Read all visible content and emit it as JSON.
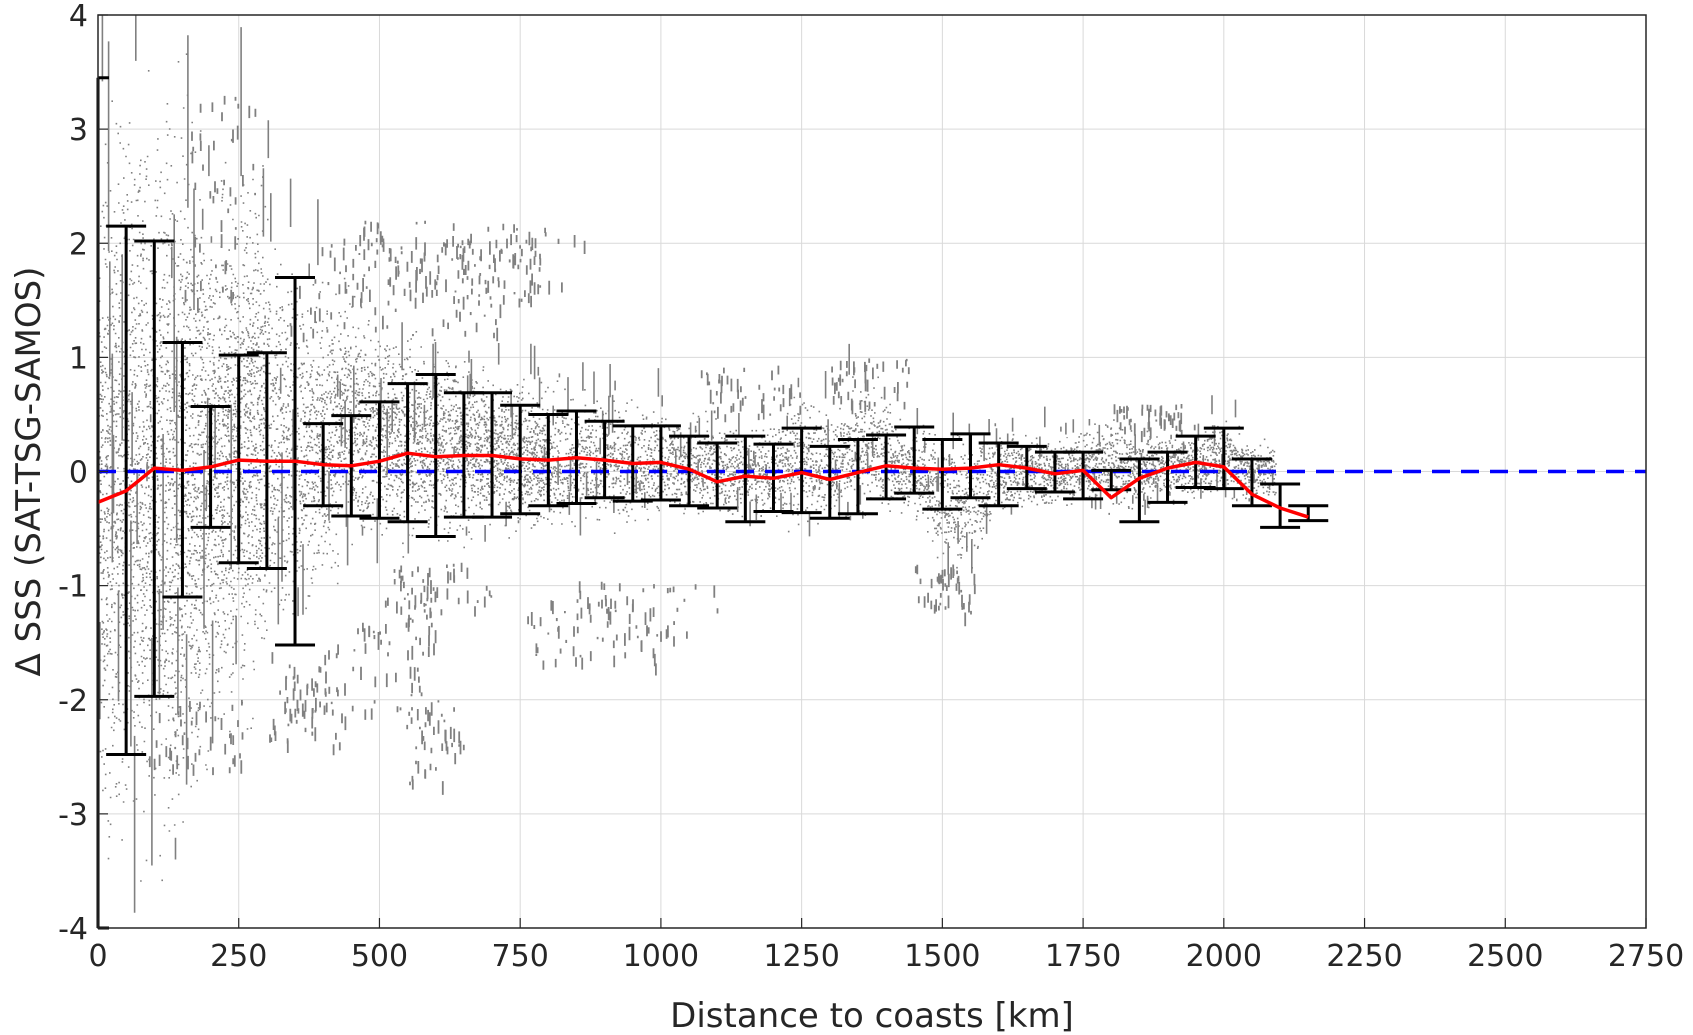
{
  "chart_data": {
    "type": "scatter",
    "title": "",
    "xlabel": "Distance to coasts [km]",
    "ylabel": "Δ SSS (SAT-TSG-SAMOS)",
    "xlim": [
      0,
      2750
    ],
    "ylim": [
      -4,
      4
    ],
    "x_ticks": [
      "0",
      "250",
      "500",
      "750",
      "1000",
      "1250",
      "1500",
      "1750",
      "2000",
      "2250",
      "2500",
      "2750"
    ],
    "y_ticks": [
      "-4",
      "-3",
      "-2",
      "-1",
      "0",
      "1",
      "2",
      "3",
      "4"
    ],
    "grid": true,
    "colors": {
      "scatter": "#808080",
      "errorbar": "#000000",
      "mean_line": "#ff0000",
      "zero_line": "#0000ff"
    },
    "zero_line": {
      "y": 0,
      "style": "dashed"
    },
    "scatter_envelope": {
      "x": [
        0,
        50,
        100,
        150,
        200,
        250,
        300,
        350,
        400,
        450,
        500,
        550,
        600,
        650,
        700,
        750,
        800,
        850,
        900,
        950,
        1000,
        1050,
        1100,
        1150,
        1200,
        1250,
        1300,
        1350,
        1400,
        1450,
        1500,
        1550,
        1600,
        1650,
        1700,
        1750,
        1800,
        1850,
        1900,
        1950,
        2000,
        2050
      ],
      "upper": [
        3.5,
        4.0,
        4.0,
        4.0,
        3.0,
        3.2,
        3.0,
        2.2,
        2.0,
        1.8,
        1.6,
        1.4,
        1.3,
        1.1,
        1.0,
        1.0,
        0.9,
        0.8,
        0.8,
        0.7,
        0.7,
        0.6,
        0.6,
        0.5,
        0.5,
        0.9,
        0.6,
        1.0,
        0.8,
        0.5,
        0.5,
        0.5,
        0.4,
        0.4,
        0.4,
        0.4,
        0.6,
        0.4,
        0.4,
        0.4,
        0.6,
        0.3
      ],
      "lower": [
        -4.0,
        -4.0,
        -4.0,
        -4.0,
        -3.0,
        -2.5,
        -2.2,
        -1.8,
        -1.2,
        -1.0,
        -0.9,
        -0.8,
        -0.8,
        -0.7,
        -0.6,
        -0.7,
        -0.6,
        -0.6,
        -0.6,
        -0.6,
        -0.5,
        -0.5,
        -0.5,
        -0.5,
        -0.5,
        -0.6,
        -0.5,
        -0.5,
        -0.5,
        -0.5,
        -0.9,
        -1.1,
        -0.4,
        -0.4,
        -0.4,
        -0.3,
        -0.4,
        -0.4,
        -0.3,
        -0.3,
        -0.3,
        -0.3
      ]
    },
    "scatter_outliers": [
      {
        "x": [
          380,
          870
        ],
        "y": [
          1.65,
          2.2
        ]
      },
      {
        "x": [
          420,
          780
        ],
        "y": [
          1.45,
          1.95
        ]
      },
      {
        "x": [
          330,
          720
        ],
        "y": [
          1.2,
          1.7
        ]
      },
      {
        "x": [
          440,
          820
        ],
        "y": [
          1.9,
          2.2
        ]
      },
      {
        "x": [
          490,
          790
        ],
        "y": [
          1.55,
          2.05
        ]
      },
      {
        "x": [
          330,
          580
        ],
        "y": [
          -1.7,
          -2.1
        ]
      },
      {
        "x": [
          450,
          600
        ],
        "y": [
          -1.1,
          -1.6
        ]
      },
      {
        "x": [
          540,
          650
        ],
        "y": [
          -2.0,
          -2.75
        ]
      },
      {
        "x": [
          300,
          440
        ],
        "y": [
          -1.5,
          -2.4
        ]
      },
      {
        "x": [
          520,
          700
        ],
        "y": [
          -0.8,
          -1.25
        ]
      },
      {
        "x": [
          760,
          1000
        ],
        "y": [
          -1.1,
          -1.7
        ]
      },
      {
        "x": [
          850,
          1100
        ],
        "y": [
          -0.95,
          -1.45
        ]
      },
      {
        "x": [
          1450,
          1560
        ],
        "y": [
          -0.8,
          -1.25
        ]
      },
      {
        "x": [
          1300,
          1440
        ],
        "y": [
          0.6,
          1.0
        ]
      },
      {
        "x": [
          1070,
          1250
        ],
        "y": [
          0.5,
          0.95
        ]
      },
      {
        "x": [
          1800,
          1950
        ],
        "y": [
          0.35,
          0.6
        ]
      },
      {
        "x": [
          150,
          280
        ],
        "y": [
          1.5,
          3.3
        ]
      },
      {
        "x": [
          90,
          260
        ],
        "y": [
          -2.0,
          -2.6
        ]
      }
    ],
    "series": [
      {
        "x": [
          0,
          50,
          100,
          150,
          200,
          250,
          300,
          350,
          400,
          450,
          500,
          550,
          600,
          650,
          700,
          750,
          800,
          850,
          900,
          950,
          1000,
          1050,
          1100,
          1150,
          1200,
          1250,
          1300,
          1350,
          1400,
          1450,
          1500,
          1550,
          1600,
          1650,
          1700,
          1750,
          1800,
          1850,
          1900,
          1950,
          2000,
          2050,
          2100,
          2150
        ],
        "mean": [
          -0.27,
          -0.17,
          0.03,
          0.01,
          0.04,
          0.1,
          0.09,
          0.09,
          0.06,
          0.05,
          0.09,
          0.16,
          0.13,
          0.14,
          0.14,
          0.11,
          0.1,
          0.12,
          0.1,
          0.07,
          0.08,
          0.02,
          -0.09,
          -0.04,
          -0.06,
          -0.01,
          -0.07,
          -0.01,
          0.05,
          0.03,
          0.02,
          0.03,
          0.06,
          0.03,
          -0.02,
          0.01,
          -0.23,
          -0.06,
          0.03,
          0.08,
          0.04,
          -0.2,
          -0.32,
          -0.4
        ],
        "upper": [
          3.45,
          2.15,
          2.02,
          1.13,
          0.57,
          1.02,
          1.04,
          1.7,
          0.42,
          0.49,
          0.61,
          0.77,
          0.85,
          0.69,
          0.69,
          0.58,
          0.5,
          0.53,
          0.44,
          0.4,
          0.4,
          0.31,
          0.25,
          0.31,
          0.24,
          0.38,
          0.22,
          0.28,
          0.32,
          0.39,
          0.28,
          0.33,
          0.25,
          0.22,
          0.17,
          0.17,
          0.01,
          0.11,
          0.17,
          0.31,
          0.38,
          0.11,
          -0.11,
          -0.3
        ],
        "lower": [
          -4.0,
          -2.48,
          -1.97,
          -1.1,
          -0.49,
          -0.8,
          -0.85,
          -1.52,
          -0.3,
          -0.39,
          -0.41,
          -0.44,
          -0.57,
          -0.4,
          -0.4,
          -0.37,
          -0.3,
          -0.28,
          -0.23,
          -0.26,
          -0.25,
          -0.3,
          -0.32,
          -0.44,
          -0.35,
          -0.36,
          -0.41,
          -0.37,
          -0.24,
          -0.19,
          -0.33,
          -0.23,
          -0.3,
          -0.15,
          -0.18,
          -0.24,
          -0.16,
          -0.44,
          -0.27,
          -0.14,
          -0.15,
          -0.3,
          -0.49,
          -0.43
        ]
      }
    ]
  }
}
